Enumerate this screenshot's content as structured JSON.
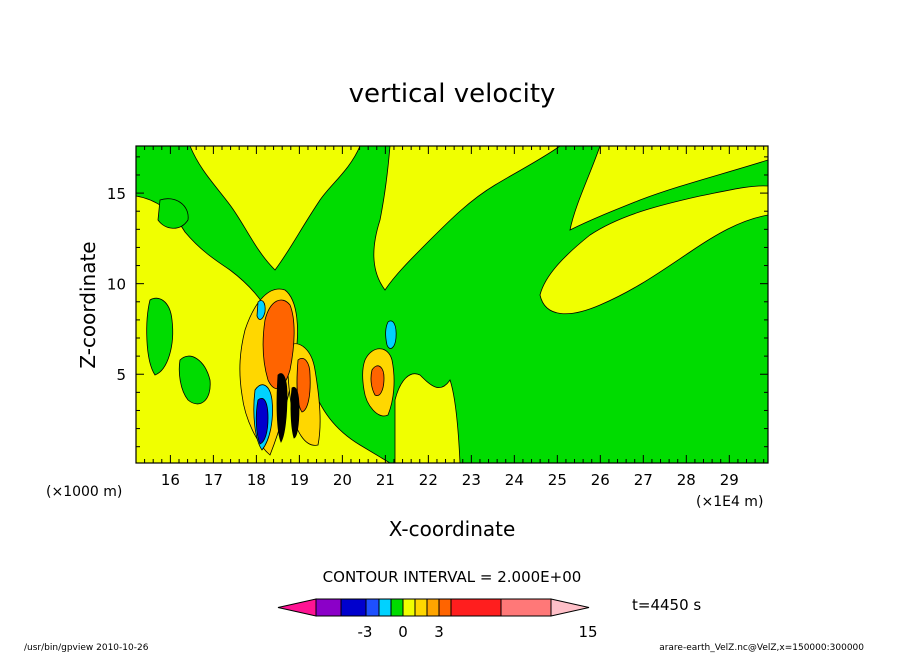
{
  "chart_data": {
    "type": "heatmap",
    "title": "vertical velocity",
    "xlabel": "X-coordinate",
    "ylabel": "Z-coordinate",
    "x_unit_left": "(×1000 m)",
    "x_unit_right": "(×1E4 m)",
    "xlim": [
      15.2,
      29.9
    ],
    "ylim": [
      0.1,
      17.6
    ],
    "x_ticks": [
      "16",
      "17",
      "18",
      "19",
      "20",
      "21",
      "22",
      "23",
      "24",
      "25",
      "26",
      "27",
      "28",
      "29"
    ],
    "y_ticks": [
      "5",
      "10",
      "15"
    ],
    "contour_interval": "CONTOUR INTERVAL = 2.000E+00",
    "time_label": "t=4450 s",
    "colorbar": {
      "colors": [
        "#ff1493",
        "#8b00c8",
        "#0000cd",
        "#1e50ff",
        "#00d2ff",
        "#00dc00",
        "#f0ff00",
        "#ffd700",
        "#ffa500",
        "#ff6400",
        "#ff1e1e",
        "#ff7878",
        "#ffc0c8"
      ],
      "tick_labels": [
        "-3",
        "0",
        "3",
        "15"
      ]
    },
    "fields": {
      "background": "#00dc00",
      "positive_weak": "#f0ff00",
      "positive_mid": "#ffd700",
      "positive_strong": "#ff6400",
      "negative_weak": "#00d2ff",
      "negative_strong": "#0000cd",
      "extreme": "#000000"
    }
  },
  "footer": {
    "left": "/usr/bin/gpview   2010-10-26",
    "right": "arare-earth_VelZ.nc@VelZ,x=150000:300000"
  }
}
